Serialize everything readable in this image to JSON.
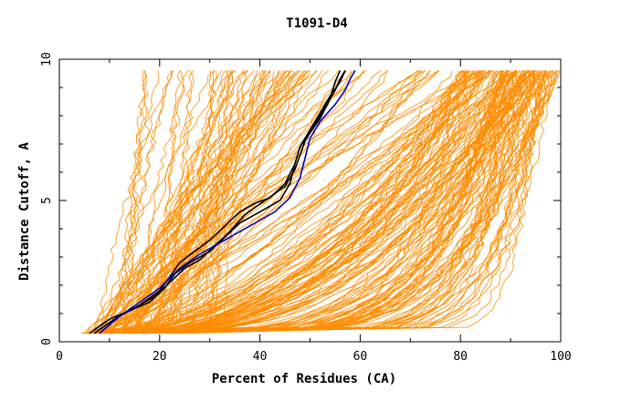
{
  "chart_data": {
    "type": "line",
    "title": "T1091-D4",
    "xlabel": "Percent of Residues (CA)",
    "ylabel": "Distance Cutoff, A",
    "xlim": [
      0,
      100
    ],
    "ylim": [
      0,
      10
    ],
    "xticks": [
      0,
      20,
      40,
      60,
      80,
      100
    ],
    "yticks": [
      0,
      5,
      10
    ],
    "grid": false,
    "colors": {
      "background_models": "#ff8c00",
      "highlight_dark": "#000000",
      "highlight_blue": "#0000cc"
    },
    "highlight_series": [
      {
        "color": "#000000",
        "x": [
          6,
          10,
          14,
          18,
          21,
          23,
          26,
          30,
          33,
          36,
          40,
          44,
          46,
          47,
          48,
          50,
          52,
          54,
          55,
          56
        ],
        "y": [
          0.3,
          0.8,
          1.1,
          1.4,
          1.9,
          2.4,
          2.8,
          3.2,
          3.7,
          4.2,
          4.6,
          5.0,
          5.6,
          6.3,
          6.9,
          7.4,
          7.9,
          8.6,
          9.2,
          9.6
        ]
      },
      {
        "color": "#000000",
        "x": [
          7,
          11,
          15,
          19,
          22,
          25,
          28,
          31,
          34,
          37,
          41,
          45,
          47,
          48,
          49,
          51,
          53,
          55,
          56,
          57
        ],
        "y": [
          0.3,
          0.8,
          1.2,
          1.6,
          2.1,
          2.6,
          2.9,
          3.4,
          3.9,
          4.5,
          5.0,
          5.5,
          6.1,
          6.6,
          7.1,
          7.7,
          8.3,
          8.9,
          9.3,
          9.6
        ]
      },
      {
        "color": "#000000",
        "x": [
          8,
          12,
          16,
          20,
          22,
          24,
          27,
          30,
          33,
          36,
          39,
          42,
          45,
          47,
          48,
          50,
          52,
          54,
          56,
          57
        ],
        "y": [
          0.3,
          0.9,
          1.3,
          1.8,
          2.3,
          2.8,
          3.2,
          3.6,
          4.1,
          4.6,
          4.9,
          5.1,
          5.6,
          6.3,
          6.9,
          7.5,
          8.1,
          8.7,
          9.2,
          9.6
        ]
      },
      {
        "color": "#0000cc",
        "x": [
          8,
          12,
          16,
          20,
          24,
          28,
          33,
          38,
          43,
          46,
          48,
          49,
          50,
          52,
          55,
          57,
          58,
          59
        ],
        "y": [
          0.3,
          0.9,
          1.4,
          1.9,
          2.6,
          3.1,
          3.6,
          4.1,
          4.6,
          5.1,
          5.8,
          6.5,
          7.2,
          7.8,
          8.4,
          8.9,
          9.3,
          9.6
        ]
      }
    ]
  }
}
